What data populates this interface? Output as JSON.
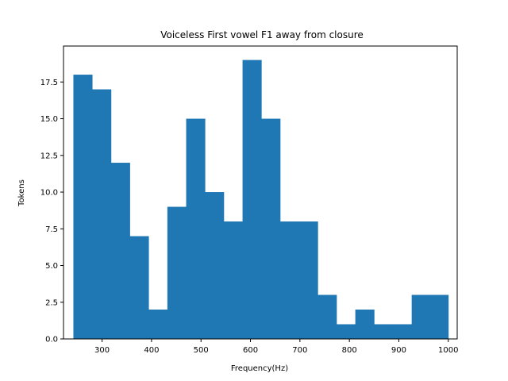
{
  "chart_data": {
    "type": "bar",
    "title": "Voiceless First vowel F1 away from closure",
    "xlabel": "Frequency(Hz)",
    "ylabel": "Tokens",
    "grid": false,
    "color": "#1f77b4",
    "xlim": [
      222,
      1018
    ],
    "ylim": [
      0,
      19.95
    ],
    "xticks": [
      300,
      400,
      500,
      600,
      700,
      800,
      900,
      1000
    ],
    "xtick_labels": [
      "300",
      "400",
      "500",
      "600",
      "700",
      "800",
      "900",
      "1000"
    ],
    "yticks": [
      0,
      2.5,
      5,
      7.5,
      10,
      12.5,
      15,
      17.5
    ],
    "ytick_labels": [
      "0.0",
      "2.5",
      "5.0",
      "7.5",
      "10.0",
      "12.5",
      "15.0",
      "17.5"
    ],
    "bins": [
      {
        "x0": 242,
        "x1": 280,
        "count": 18
      },
      {
        "x0": 280,
        "x1": 318,
        "count": 17
      },
      {
        "x0": 318,
        "x1": 356,
        "count": 12
      },
      {
        "x0": 356,
        "x1": 394,
        "count": 7
      },
      {
        "x0": 394,
        "x1": 432,
        "count": 2
      },
      {
        "x0": 432,
        "x1": 470,
        "count": 9
      },
      {
        "x0": 470,
        "x1": 508,
        "count": 15
      },
      {
        "x0": 508,
        "x1": 546,
        "count": 10
      },
      {
        "x0": 546,
        "x1": 584,
        "count": 8
      },
      {
        "x0": 584,
        "x1": 622,
        "count": 19
      },
      {
        "x0": 622,
        "x1": 660,
        "count": 15
      },
      {
        "x0": 660,
        "x1": 698,
        "count": 8
      },
      {
        "x0": 698,
        "x1": 736,
        "count": 8
      },
      {
        "x0": 736,
        "x1": 774,
        "count": 3
      },
      {
        "x0": 774,
        "x1": 812,
        "count": 1
      },
      {
        "x0": 812,
        "x1": 850,
        "count": 2
      },
      {
        "x0": 850,
        "x1": 888,
        "count": 1
      },
      {
        "x0": 888,
        "x1": 926,
        "count": 1
      },
      {
        "x0": 926,
        "x1": 964,
        "count": 3
      },
      {
        "x0": 964,
        "x1": 1000,
        "count": 3
      }
    ]
  }
}
